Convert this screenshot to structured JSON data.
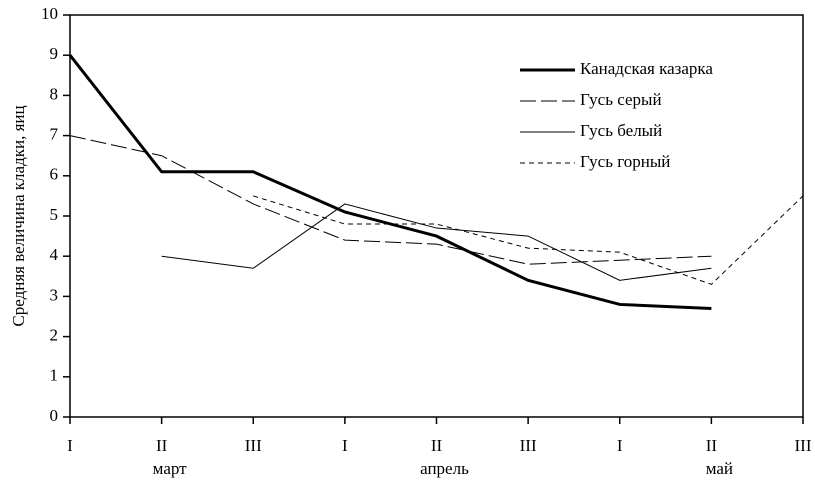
{
  "chart_data": {
    "type": "line",
    "y_label": "Средняя величина кладки, яиц",
    "categories": [
      "I",
      "II",
      "III",
      "I",
      "II",
      "III",
      "I",
      "II",
      "III"
    ],
    "month_labels": [
      null,
      "март",
      null,
      null,
      "апрель",
      null,
      null,
      "май",
      null
    ],
    "series": [
      {
        "name": "Канадская казарка",
        "color": "#000000",
        "line_style": "thick",
        "values": [
          9,
          6.1,
          6.1,
          5.1,
          4.5,
          3.4,
          2.8,
          2.7,
          null
        ]
      },
      {
        "name": "Гусь серый",
        "color": "#000000",
        "line_style": "long-dash",
        "values": [
          7,
          6.5,
          5.3,
          4.4,
          4.3,
          3.8,
          3.9,
          4.0,
          null
        ]
      },
      {
        "name": "Гусь белый",
        "color": "#000000",
        "line_style": "solid",
        "values": [
          null,
          4.0,
          3.7,
          5.3,
          4.7,
          4.5,
          3.4,
          3.7,
          null
        ]
      },
      {
        "name": "Гусь горный",
        "color": "#000000",
        "line_style": "short-dash",
        "values": [
          null,
          null,
          5.5,
          4.8,
          4.8,
          4.2,
          4.1,
          3.3,
          5.5
        ]
      }
    ],
    "ylim": [
      0,
      10
    ],
    "yticks": [
      0,
      1,
      2,
      3,
      4,
      5,
      6,
      7,
      8,
      9,
      10
    ],
    "grid": false,
    "legend": "upper right"
  }
}
